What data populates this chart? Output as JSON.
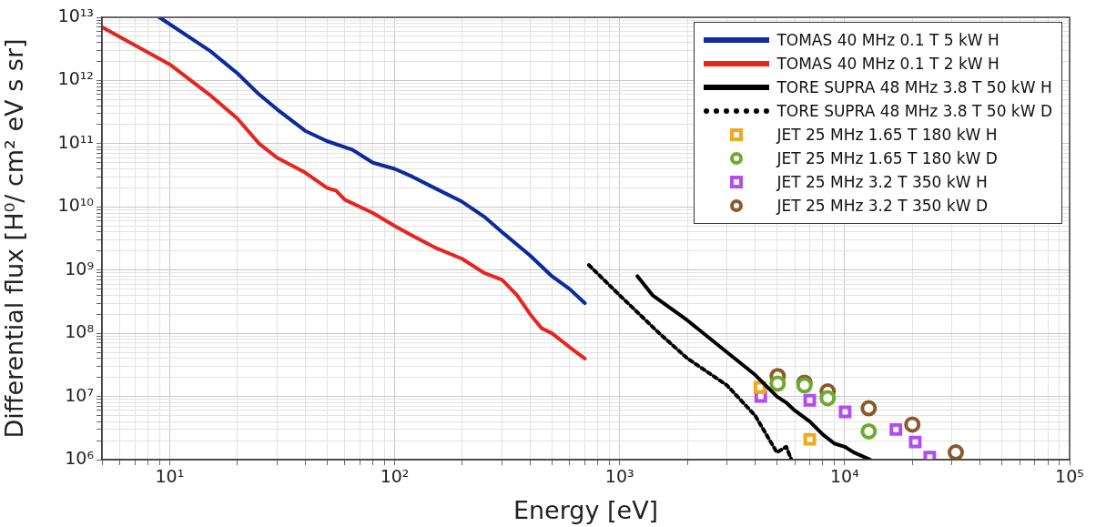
{
  "chart_data": {
    "type": "line",
    "xlabel": "Energy [eV]",
    "ylabel": "Differential flux [H⁰/ cm² eV s sr]",
    "log": "xy",
    "grid": true,
    "legend": "top right",
    "xlim": [
      5,
      100000
    ],
    "ylim": [
      1000000.0,
      10000000000000.0
    ],
    "xticks": [
      {
        "value": 5,
        "label": null
      },
      {
        "value": 6,
        "label": null
      },
      {
        "value": 7,
        "label": null
      },
      {
        "value": 8,
        "label": null
      },
      {
        "value": 9,
        "label": null
      },
      {
        "value": 10,
        "label": "10¹"
      },
      {
        "value": 20,
        "label": null
      },
      {
        "value": 30,
        "label": null
      },
      {
        "value": 40,
        "label": null
      },
      {
        "value": 50,
        "label": null
      },
      {
        "value": 60,
        "label": null
      },
      {
        "value": 70,
        "label": null
      },
      {
        "value": 80,
        "label": null
      },
      {
        "value": 90,
        "label": null
      },
      {
        "value": 100,
        "label": "10²"
      },
      {
        "value": 200,
        "label": null
      },
      {
        "value": 300,
        "label": null
      },
      {
        "value": 400,
        "label": null
      },
      {
        "value": 500,
        "label": null
      },
      {
        "value": 600,
        "label": null
      },
      {
        "value": 700,
        "label": null
      },
      {
        "value": 800,
        "label": null
      },
      {
        "value": 900,
        "label": null
      },
      {
        "value": 1000,
        "label": "10³"
      },
      {
        "value": 2000,
        "label": null
      },
      {
        "value": 3000,
        "label": null
      },
      {
        "value": 4000,
        "label": null
      },
      {
        "value": 5000,
        "label": null
      },
      {
        "value": 6000,
        "label": null
      },
      {
        "value": 7000,
        "label": null
      },
      {
        "value": 8000,
        "label": null
      },
      {
        "value": 9000,
        "label": null
      },
      {
        "value": 10000,
        "label": "10⁴"
      },
      {
        "value": 20000,
        "label": null
      },
      {
        "value": 30000,
        "label": null
      },
      {
        "value": 40000,
        "label": null
      },
      {
        "value": 50000,
        "label": null
      },
      {
        "value": 60000,
        "label": null
      },
      {
        "value": 70000,
        "label": null
      },
      {
        "value": 80000,
        "label": null
      },
      {
        "value": 90000,
        "label": null
      },
      {
        "value": 100000,
        "label": "10⁵"
      }
    ],
    "yticks": [
      {
        "value": 1000000.0,
        "label": "10⁶"
      },
      {
        "value": 2000000.0,
        "label": null
      },
      {
        "value": 3000000.0,
        "label": null
      },
      {
        "value": 4000000.0,
        "label": null
      },
      {
        "value": 5000000.0,
        "label": null
      },
      {
        "value": 6000000.0,
        "label": null
      },
      {
        "value": 7000000.0,
        "label": null
      },
      {
        "value": 8000000.0,
        "label": null
      },
      {
        "value": 9000000.0,
        "label": null
      },
      {
        "value": 10000000.0,
        "label": "10⁷"
      },
      {
        "value": 20000000.0,
        "label": null
      },
      {
        "value": 30000000.0,
        "label": null
      },
      {
        "value": 40000000.0,
        "label": null
      },
      {
        "value": 50000000.0,
        "label": null
      },
      {
        "value": 60000000.0,
        "label": null
      },
      {
        "value": 70000000.0,
        "label": null
      },
      {
        "value": 80000000.0,
        "label": null
      },
      {
        "value": 90000000.0,
        "label": null
      },
      {
        "value": 100000000.0,
        "label": "10⁸"
      },
      {
        "value": 200000000.0,
        "label": null
      },
      {
        "value": 300000000.0,
        "label": null
      },
      {
        "value": 400000000.0,
        "label": null
      },
      {
        "value": 500000000.0,
        "label": null
      },
      {
        "value": 600000000.0,
        "label": null
      },
      {
        "value": 700000000.0,
        "label": null
      },
      {
        "value": 800000000.0,
        "label": null
      },
      {
        "value": 900000000.0,
        "label": null
      },
      {
        "value": 1000000000.0,
        "label": "10⁹"
      },
      {
        "value": 2000000000.0,
        "label": null
      },
      {
        "value": 3000000000.0,
        "label": null
      },
      {
        "value": 4000000000.0,
        "label": null
      },
      {
        "value": 5000000000.0,
        "label": null
      },
      {
        "value": 6000000000.0,
        "label": null
      },
      {
        "value": 7000000000.0,
        "label": null
      },
      {
        "value": 8000000000.0,
        "label": null
      },
      {
        "value": 9000000000.0,
        "label": null
      },
      {
        "value": 10000000000.0,
        "label": "10¹⁰"
      },
      {
        "value": 20000000000.0,
        "label": null
      },
      {
        "value": 30000000000.0,
        "label": null
      },
      {
        "value": 40000000000.0,
        "label": null
      },
      {
        "value": 50000000000.0,
        "label": null
      },
      {
        "value": 60000000000.0,
        "label": null
      },
      {
        "value": 70000000000.0,
        "label": null
      },
      {
        "value": 80000000000.0,
        "label": null
      },
      {
        "value": 90000000000.0,
        "label": null
      },
      {
        "value": 100000000000.0,
        "label": "10¹¹"
      },
      {
        "value": 200000000000.0,
        "label": null
      },
      {
        "value": 300000000000.0,
        "label": null
      },
      {
        "value": 400000000000.0,
        "label": null
      },
      {
        "value": 500000000000.0,
        "label": null
      },
      {
        "value": 600000000000.0,
        "label": null
      },
      {
        "value": 700000000000.0,
        "label": null
      },
      {
        "value": 800000000000.0,
        "label": null
      },
      {
        "value": 900000000000.0,
        "label": null
      },
      {
        "value": 1000000000000.0,
        "label": "10¹²"
      },
      {
        "value": 2000000000000.0,
        "label": null
      },
      {
        "value": 3000000000000.0,
        "label": null
      },
      {
        "value": 4000000000000.0,
        "label": null
      },
      {
        "value": 5000000000000.0,
        "label": null
      },
      {
        "value": 6000000000000.0,
        "label": null
      },
      {
        "value": 7000000000000.0,
        "label": null
      },
      {
        "value": 8000000000000.0,
        "label": null
      },
      {
        "value": 9000000000000.0,
        "label": null
      },
      {
        "value": 10000000000000.0,
        "label": "10¹³"
      }
    ],
    "series": [
      {
        "name": "TOMAS 40 MHz 0.1 T 5 kW H",
        "type": "line",
        "color": "#0b2a9c",
        "marker": "none",
        "line_style": "solid",
        "x": [
          9,
          15,
          20,
          25,
          30,
          40,
          50,
          65,
          80,
          100,
          120,
          150,
          200,
          250,
          300,
          400,
          500,
          600,
          700
        ],
        "values": [
          10000000000000.0,
          3000000000000.0,
          1300000000000.0,
          600000000000.0,
          350000000000.0,
          160000000000.0,
          110000000000.0,
          80000000000.0,
          50000000000.0,
          40000000000.0,
          30000000000.0,
          20000000000.0,
          12000000000.0,
          7000000000.0,
          4000000000.0,
          1700000000.0,
          800000000.0,
          500000000.0,
          300000000.0
        ]
      },
      {
        "name": "TOMAS 40 MHz 0.1 T 2 kW H",
        "type": "line",
        "color": "#e8241f",
        "marker": "none",
        "line_style": "solid",
        "x": [
          5,
          10,
          15,
          20,
          25,
          30,
          40,
          50,
          55,
          60,
          80,
          100,
          120,
          150,
          200,
          250,
          300,
          350,
          400,
          450,
          500,
          600,
          700
        ],
        "values": [
          7000000000000.0,
          1800000000000.0,
          600000000000.0,
          250000000000.0,
          100000000000.0,
          60000000000.0,
          35000000000.0,
          20000000000.0,
          18000000000.0,
          13000000000.0,
          8000000000.0,
          5000000000.0,
          3500000000.0,
          2300000000.0,
          1500000000.0,
          900000000.0,
          700000000.0,
          400000000.0,
          200000000.0,
          120000000.0,
          100000000.0,
          60000000.0,
          40000000.0
        ]
      },
      {
        "name": "TORE SUPRA 48 MHz 3.8 T 50 kW H",
        "type": "line",
        "color": "#000000",
        "marker": "none",
        "line_style": "solid",
        "x": [
          1200,
          1400,
          2000,
          3000,
          4000,
          5000,
          5500,
          6000,
          7000,
          8000,
          9000,
          10000,
          11000,
          13000
        ],
        "values": [
          800000000.0,
          400000000.0,
          160000000.0,
          50000000.0,
          22000000.0,
          10000000.0,
          8000000.0,
          6000000.0,
          4000000.0,
          2500000.0,
          1800000.0,
          1600000.0,
          1300000.0,
          1000000.0
        ]
      },
      {
        "name": "TORE SUPRA 48 MHz 3.8 T 50 kW D",
        "type": "line",
        "color": "#000000",
        "marker": "none",
        "line_style": "dotted",
        "x": [
          730,
          1000,
          1500,
          2000,
          3000,
          4000,
          5000,
          5500,
          5800
        ],
        "values": [
          1200000000.0,
          400000000.0,
          100000000.0,
          40000000.0,
          15000000.0,
          5000000.0,
          1300000.0,
          1600000.0,
          1000000.0
        ]
      },
      {
        "name": "JET 25 MHz 1.65 T 180 kW H",
        "type": "scatter",
        "color": "#f0a81c",
        "marker": "square",
        "x": [
          4200,
          7000
        ],
        "values": [
          14000000.0,
          2100000.0
        ]
      },
      {
        "name": "JET 25 MHz 1.65 T 180 kW D",
        "type": "scatter",
        "color": "#6cab2e",
        "marker": "circle",
        "x": [
          5040,
          6630,
          8410,
          12800
        ],
        "values": [
          16000000.0,
          15000000.0,
          9400000.0,
          2800000.0
        ]
      },
      {
        "name": "JET 25 MHz 3.2 T 350 kW H",
        "type": "scatter",
        "color": "#b44cf0",
        "marker": "square",
        "x": [
          4240,
          7000,
          10050,
          16900,
          20600,
          23900
        ],
        "values": [
          10000000.0,
          8700000.0,
          5700000.0,
          3000000.0,
          1900000.0,
          1100000.0
        ]
      },
      {
        "name": "JET 25 MHz 3.2 T 350 kW D",
        "type": "scatter",
        "color": "#8b5a2b",
        "marker": "circle",
        "x": [
          5040,
          6630,
          8410,
          12800,
          20000,
          31200
        ],
        "values": [
          21000000.0,
          16500000.0,
          12000000.0,
          6500000.0,
          3600000.0,
          1300000.0
        ]
      }
    ]
  }
}
